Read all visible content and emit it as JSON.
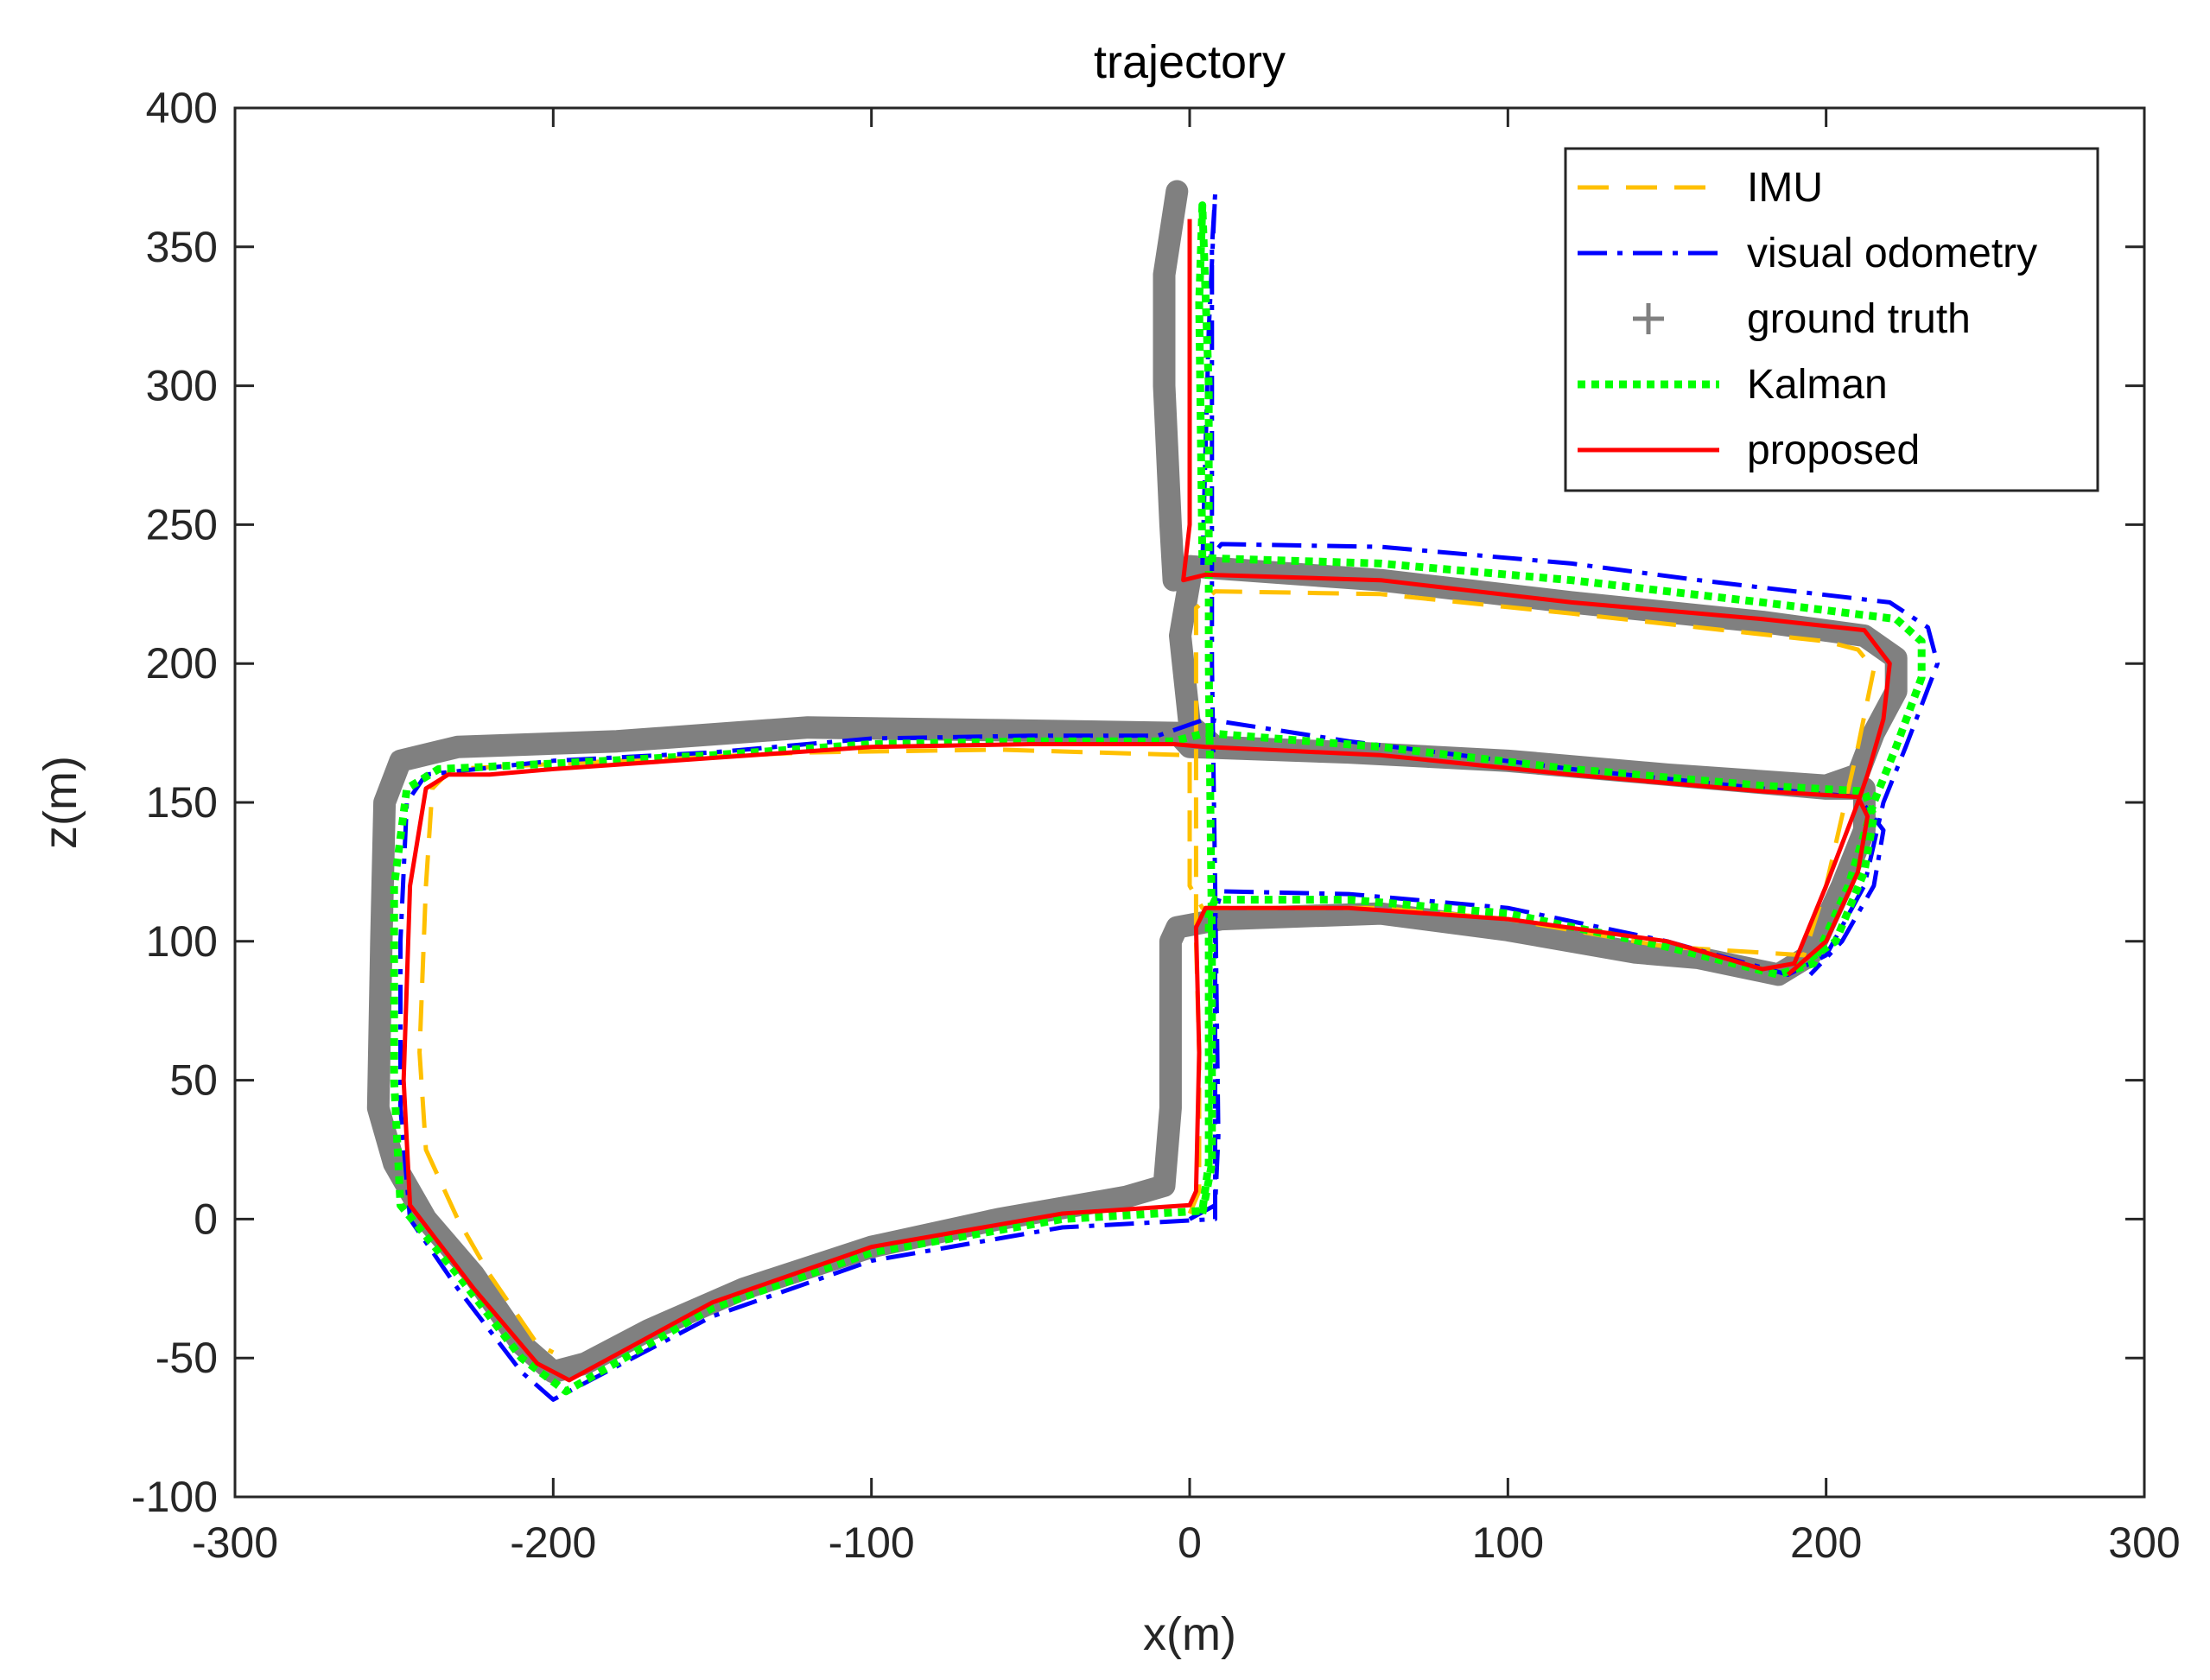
{
  "chart_data": {
    "type": "line",
    "title": "trajectory",
    "xlabel": "x(m)",
    "ylabel": "z(m)",
    "xlim": [
      -300,
      300
    ],
    "ylim": [
      -100,
      400
    ],
    "xticks": [
      -300,
      -200,
      -100,
      0,
      100,
      200,
      300
    ],
    "yticks": [
      -100,
      -50,
      0,
      50,
      100,
      150,
      200,
      250,
      300,
      350,
      400
    ],
    "xtick_labels": [
      "-300",
      "-200",
      "-100",
      "0",
      "100",
      "200",
      "300"
    ],
    "ytick_labels": [
      "-100",
      "-50",
      "0",
      "50",
      "100",
      "150",
      "200",
      "250",
      "300",
      "350",
      "400"
    ],
    "grid": false,
    "legend_position": "top-right",
    "series": [
      {
        "name": "IMU",
        "color": "#FFC000",
        "style": "dashed",
        "points": [
          [
            0,
            2
          ],
          [
            3,
            10
          ],
          [
            3,
            60
          ],
          [
            2,
            100
          ],
          [
            2,
            160
          ],
          [
            2,
            220
          ],
          [
            8,
            226
          ],
          [
            60,
            225
          ],
          [
            120,
            218
          ],
          [
            200,
            208
          ],
          [
            210,
            205
          ],
          [
            215,
            198
          ],
          [
            210,
            170
          ],
          [
            200,
            120
          ],
          [
            193,
            95
          ],
          [
            150,
            98
          ],
          [
            100,
            108
          ],
          [
            60,
            112
          ],
          [
            4,
            112
          ],
          [
            4,
            112
          ],
          [
            0,
            120
          ],
          [
            0,
            167
          ],
          [
            -60,
            169
          ],
          [
            -120,
            168
          ],
          [
            -180,
            165
          ],
          [
            -232,
            162
          ],
          [
            -238,
            155
          ],
          [
            -240,
            120
          ],
          [
            -242,
            60
          ],
          [
            -240,
            25
          ],
          [
            -230,
            0
          ],
          [
            -220,
            -20
          ],
          [
            -205,
            -45
          ],
          [
            -200,
            -48
          ]
        ]
      },
      {
        "name": "visual odometry",
        "color": "#0000FF",
        "style": "dashdot",
        "points": [
          [
            0,
            0
          ],
          [
            8,
            5
          ],
          [
            9,
            30
          ],
          [
            8,
            120
          ],
          [
            7,
            200
          ],
          [
            7,
            280
          ],
          [
            7,
            350
          ],
          [
            8,
            369
          ],
          [
            6,
            320
          ],
          [
            4,
            235
          ],
          [
            10,
            243
          ],
          [
            60,
            242
          ],
          [
            120,
            236
          ],
          [
            160,
            230
          ],
          [
            220,
            222
          ],
          [
            232,
            213
          ],
          [
            235,
            200
          ],
          [
            225,
            170
          ],
          [
            218,
            150
          ],
          [
            212,
            120
          ],
          [
            200,
            95
          ],
          [
            188,
            88
          ],
          [
            150,
            100
          ],
          [
            100,
            112
          ],
          [
            50,
            117
          ],
          [
            10,
            118
          ],
          [
            8,
            110
          ],
          [
            8,
            50
          ],
          [
            8,
            0
          ],
          [
            -40,
            -3
          ],
          [
            -100,
            -15
          ],
          [
            -150,
            -35
          ],
          [
            -200,
            -65
          ],
          [
            -210,
            -55
          ],
          [
            -230,
            -25
          ],
          [
            -245,
            0
          ],
          [
            -248,
            40
          ],
          [
            -248,
            100
          ],
          [
            -246,
            150
          ],
          [
            -240,
            160
          ],
          [
            -200,
            165
          ],
          [
            -150,
            168
          ],
          [
            -100,
            173
          ],
          [
            -50,
            174
          ],
          [
            -10,
            174
          ],
          [
            5,
            180
          ],
          [
            50,
            172
          ],
          [
            120,
            162
          ],
          [
            180,
            155
          ],
          [
            210,
            152
          ],
          [
            218,
            140
          ],
          [
            215,
            120
          ],
          [
            205,
            100
          ],
          [
            195,
            88
          ]
        ]
      },
      {
        "name": "ground truth",
        "color": "#808080",
        "style": "thick",
        "points": [
          [
            -4,
            370
          ],
          [
            -8,
            340
          ],
          [
            -8,
            300
          ],
          [
            -6,
            250
          ],
          [
            -5,
            230
          ],
          [
            0,
            235
          ],
          [
            60,
            230
          ],
          [
            120,
            222
          ],
          [
            180,
            215
          ],
          [
            212,
            210
          ],
          [
            222,
            202
          ],
          [
            222,
            190
          ],
          [
            215,
            175
          ],
          [
            210,
            160
          ],
          [
            200,
            156
          ],
          [
            150,
            160
          ],
          [
            100,
            165
          ],
          [
            50,
            168
          ],
          [
            0,
            170
          ],
          [
            -4,
            175
          ],
          [
            -60,
            176
          ],
          [
            -120,
            177
          ],
          [
            -180,
            172
          ],
          [
            -230,
            170
          ],
          [
            -248,
            165
          ],
          [
            -253,
            150
          ],
          [
            -254,
            100
          ],
          [
            -255,
            40
          ],
          [
            -250,
            20
          ],
          [
            -240,
            0
          ],
          [
            -225,
            -20
          ],
          [
            -210,
            -45
          ],
          [
            -200,
            -55
          ],
          [
            -190,
            -52
          ],
          [
            -170,
            -40
          ],
          [
            -140,
            -25
          ],
          [
            -100,
            -10
          ],
          [
            -60,
            0
          ],
          [
            -20,
            8
          ],
          [
            -8,
            12
          ],
          [
            -6,
            40
          ],
          [
            -6,
            100
          ],
          [
            -4,
            105
          ],
          [
            10,
            108
          ],
          [
            60,
            110
          ],
          [
            100,
            104
          ],
          [
            140,
            96
          ],
          [
            160,
            94
          ],
          [
            185,
            88
          ],
          [
            195,
            95
          ],
          [
            205,
            120
          ],
          [
            212,
            140
          ],
          [
            212,
            155
          ],
          [
            200,
            155
          ],
          [
            150,
            160
          ],
          [
            100,
            165
          ],
          [
            50,
            168
          ],
          [
            8,
            170
          ],
          [
            0,
            178
          ],
          [
            -3,
            210
          ],
          [
            0,
            230
          ]
        ]
      },
      {
        "name": "Kalman",
        "color": "#00FF00",
        "style": "dotted",
        "points": [
          [
            4,
            2
          ],
          [
            7,
            20
          ],
          [
            7,
            100
          ],
          [
            6,
            200
          ],
          [
            6,
            300
          ],
          [
            4,
            365
          ],
          [
            3,
            330
          ],
          [
            4,
            238
          ],
          [
            60,
            236
          ],
          [
            120,
            230
          ],
          [
            180,
            222
          ],
          [
            222,
            216
          ],
          [
            230,
            208
          ],
          [
            230,
            195
          ],
          [
            222,
            170
          ],
          [
            215,
            150
          ],
          [
            207,
            120
          ],
          [
            196,
            92
          ],
          [
            185,
            88
          ],
          [
            150,
            98
          ],
          [
            100,
            110
          ],
          [
            50,
            115
          ],
          [
            8,
            115
          ],
          [
            6,
            110
          ],
          [
            6,
            20
          ],
          [
            4,
            3
          ],
          [
            -40,
            0
          ],
          [
            -100,
            -12
          ],
          [
            -150,
            -32
          ],
          [
            -196,
            -62
          ],
          [
            -210,
            -50
          ],
          [
            -230,
            -20
          ],
          [
            -248,
            5
          ],
          [
            -250,
            50
          ],
          [
            -250,
            120
          ],
          [
            -246,
            155
          ],
          [
            -236,
            162
          ],
          [
            -200,
            164
          ],
          [
            -150,
            167
          ],
          [
            -100,
            171
          ],
          [
            -50,
            172
          ],
          [
            -5,
            172
          ],
          [
            5,
            175
          ],
          [
            60,
            170
          ],
          [
            120,
            162
          ],
          [
            180,
            156
          ],
          [
            212,
            154
          ],
          [
            215,
            145
          ],
          [
            212,
            125
          ],
          [
            203,
            100
          ],
          [
            190,
            90
          ]
        ]
      },
      {
        "name": "proposed",
        "color": "#FF0000",
        "style": "solid",
        "points": [
          [
            0,
            360
          ],
          [
            0,
            300
          ],
          [
            0,
            250
          ],
          [
            -2,
            230
          ],
          [
            5,
            232
          ],
          [
            60,
            230
          ],
          [
            120,
            222
          ],
          [
            180,
            216
          ],
          [
            212,
            212
          ],
          [
            220,
            200
          ],
          [
            218,
            180
          ],
          [
            213,
            160
          ],
          [
            210,
            150
          ],
          [
            200,
            120
          ],
          [
            190,
            92
          ],
          [
            180,
            90
          ],
          [
            150,
            100
          ],
          [
            100,
            108
          ],
          [
            50,
            112
          ],
          [
            5,
            112
          ],
          [
            2,
            105
          ],
          [
            3,
            60
          ],
          [
            2,
            10
          ],
          [
            0,
            5
          ],
          [
            -40,
            2
          ],
          [
            -100,
            -10
          ],
          [
            -150,
            -30
          ],
          [
            -195,
            -58
          ],
          [
            -205,
            -52
          ],
          [
            -225,
            -25
          ],
          [
            -245,
            5
          ],
          [
            -247,
            50
          ],
          [
            -245,
            120
          ],
          [
            -240,
            155
          ],
          [
            -233,
            160
          ],
          [
            -220,
            160
          ],
          [
            -200,
            162
          ],
          [
            -150,
            166
          ],
          [
            -100,
            170
          ],
          [
            -50,
            171
          ],
          [
            -5,
            171
          ],
          [
            5,
            170
          ],
          [
            60,
            167
          ],
          [
            120,
            160
          ],
          [
            180,
            154
          ],
          [
            210,
            152
          ],
          [
            213,
            145
          ],
          [
            210,
            125
          ],
          [
            200,
            100
          ],
          [
            188,
            88
          ]
        ]
      }
    ]
  }
}
